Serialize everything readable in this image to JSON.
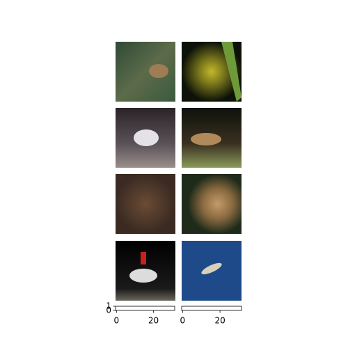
{
  "chart_data": [
    {
      "type": "axes",
      "xlim": [
        -0.5,
        31.5
      ],
      "xticks": [
        0,
        20
      ],
      "ylim": [
        0,
        1
      ],
      "yticks": [
        0,
        1
      ]
    },
    {
      "type": "axes",
      "xlim": [
        -0.5,
        31.5
      ],
      "xticks": [
        0,
        20
      ]
    }
  ]
}
